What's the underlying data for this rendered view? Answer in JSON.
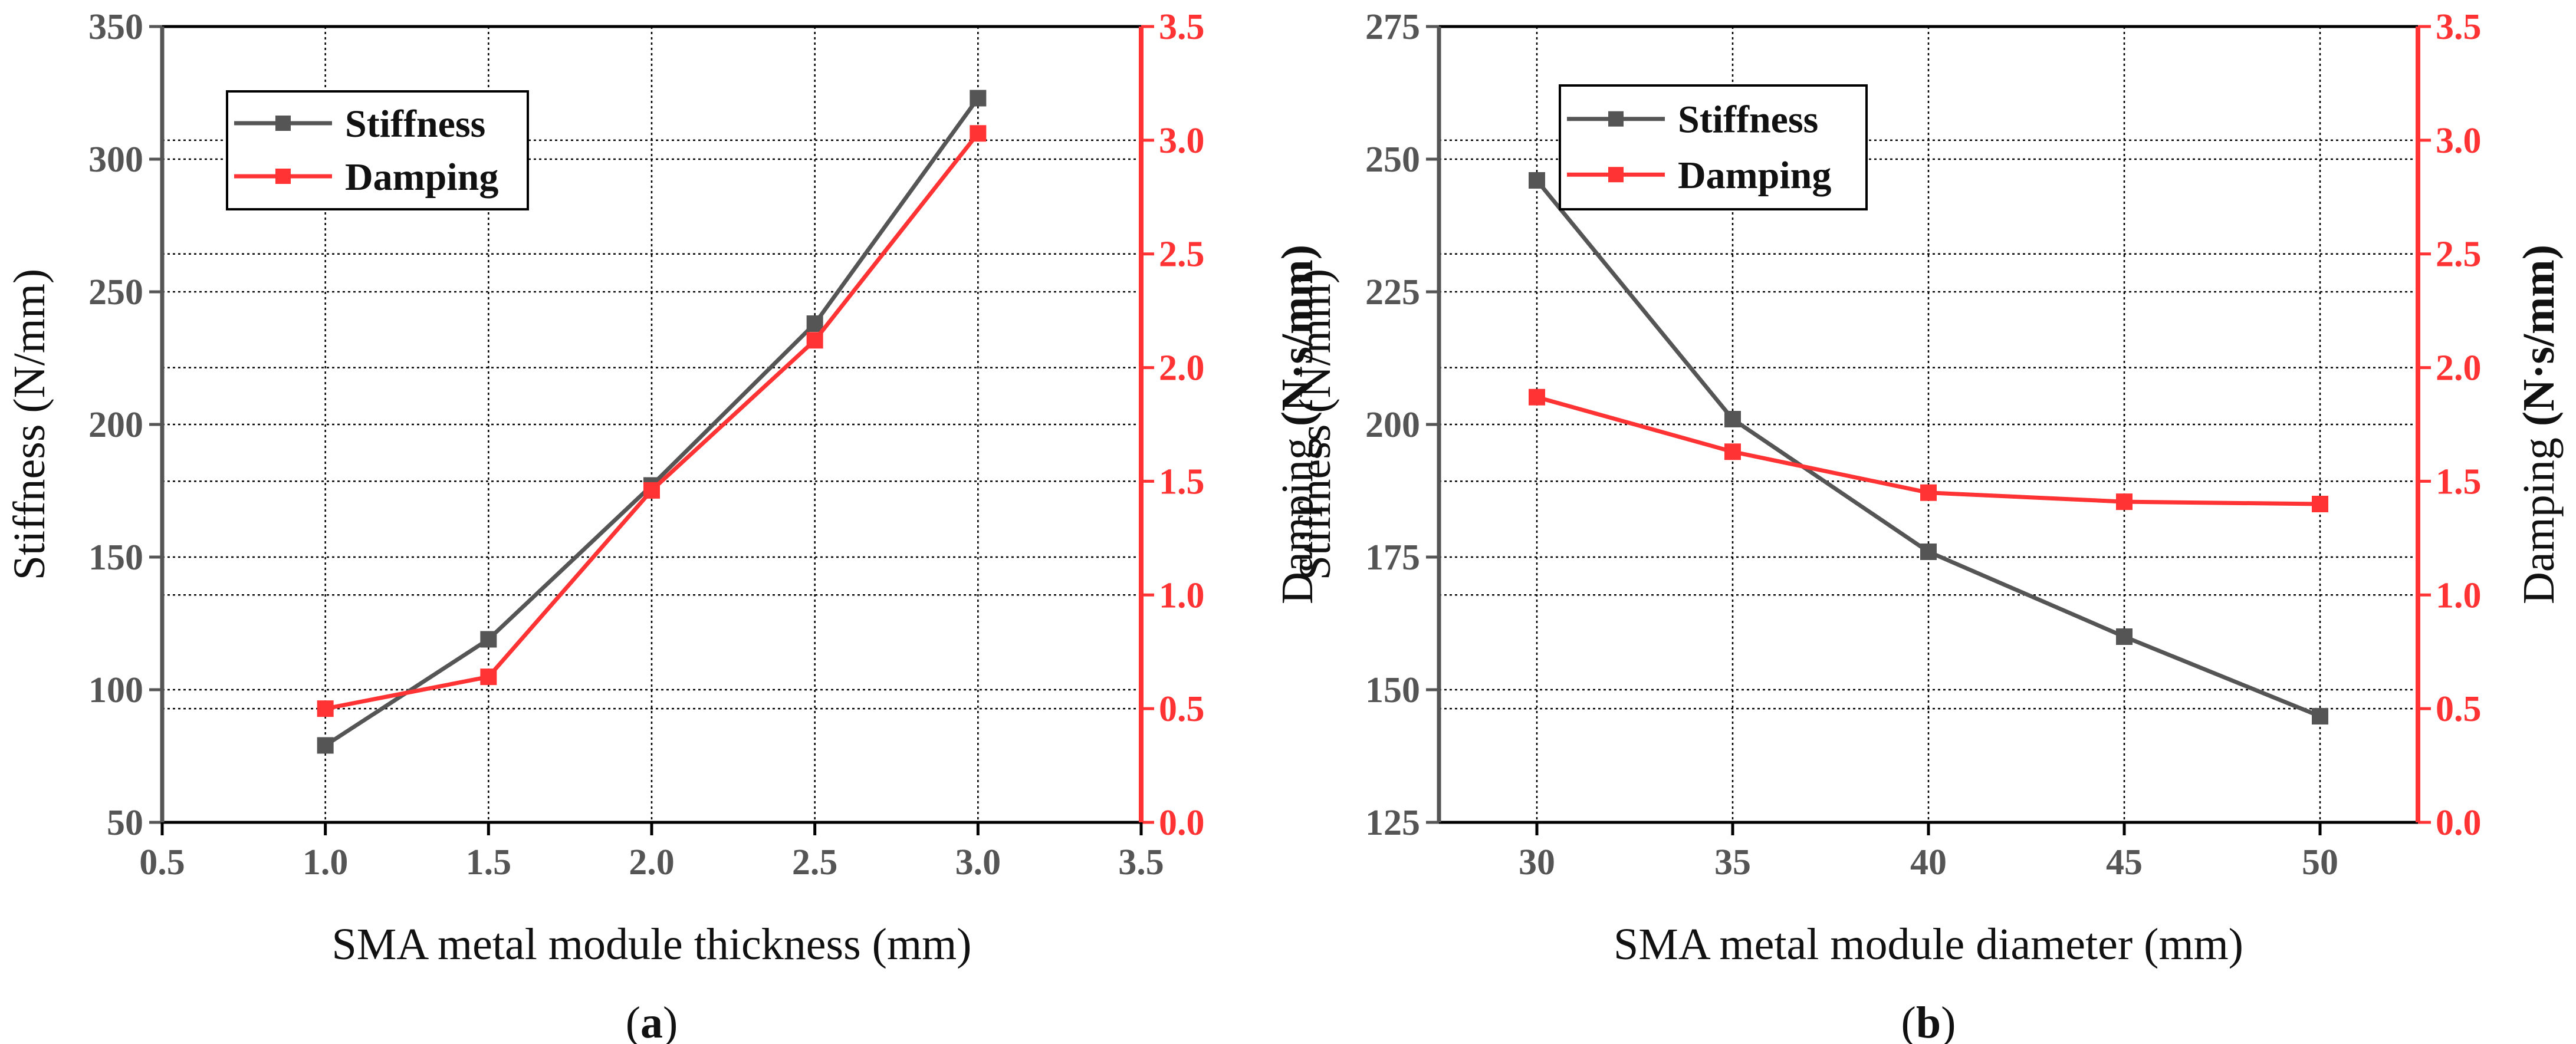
{
  "colors": {
    "stiffness": "#555555",
    "damping": "#ff3333",
    "grid": "#000000",
    "frame": "#000000"
  },
  "chart_data": [
    {
      "type": "line",
      "panel_label": "a",
      "xlabel": "SMA metal module thickness (mm)",
      "ylabel": "Stiffness (N/mm)",
      "ylabel2_prefix": "Damping ",
      "ylabel2_unit": "(N·s/mm)",
      "xlim": [
        0.5,
        3.5
      ],
      "ylim": [
        50,
        350
      ],
      "y2lim": [
        0.0,
        3.5
      ],
      "x_ticks": [
        "0.5",
        "1.0",
        "1.5",
        "2.0",
        "2.5",
        "3.0",
        "3.5"
      ],
      "y_ticks": [
        "50",
        "100",
        "150",
        "200",
        "250",
        "300",
        "350"
      ],
      "y2_ticks": [
        "0.0",
        "0.5",
        "1.0",
        "1.5",
        "2.0",
        "2.5",
        "3.0",
        "3.5"
      ],
      "legend": [
        "Stiffness",
        "Damping"
      ],
      "legend_position": "top-left",
      "series": [
        {
          "name": "Stiffness",
          "axis": "left",
          "x": [
            1.0,
            1.5,
            2.0,
            2.5,
            3.0
          ],
          "values": [
            79,
            119,
            177,
            238,
            323
          ]
        },
        {
          "name": "Damping",
          "axis": "right",
          "x": [
            1.0,
            1.5,
            2.0,
            2.5,
            3.0
          ],
          "values": [
            0.5,
            0.64,
            1.46,
            2.12,
            3.03
          ]
        }
      ]
    },
    {
      "type": "line",
      "panel_label": "b",
      "xlabel": "SMA metal module diameter (mm)",
      "ylabel": "Stiffness (N/mm)",
      "ylabel2_prefix": "Damping ",
      "ylabel2_unit": "(N·s/mm)",
      "xlim": [
        27.5,
        52.5
      ],
      "ylim": [
        125,
        275
      ],
      "y2lim": [
        0.0,
        3.5
      ],
      "x_ticks": [
        "30",
        "35",
        "40",
        "45",
        "50"
      ],
      "y_ticks": [
        "125",
        "150",
        "175",
        "200",
        "225",
        "250",
        "275"
      ],
      "y2_ticks": [
        "0.0",
        "0.5",
        "1.0",
        "1.5",
        "2.0",
        "2.5",
        "3.0",
        "3.5"
      ],
      "legend": [
        "Stiffness",
        "Damping"
      ],
      "legend_position": "top-left",
      "series": [
        {
          "name": "Stiffness",
          "axis": "left",
          "x": [
            30,
            35,
            40,
            45,
            50
          ],
          "values": [
            246,
            201,
            176,
            160,
            145
          ]
        },
        {
          "name": "Damping",
          "axis": "right",
          "x": [
            30,
            35,
            40,
            45,
            50
          ],
          "values": [
            1.87,
            1.63,
            1.45,
            1.41,
            1.4
          ]
        }
      ]
    }
  ]
}
